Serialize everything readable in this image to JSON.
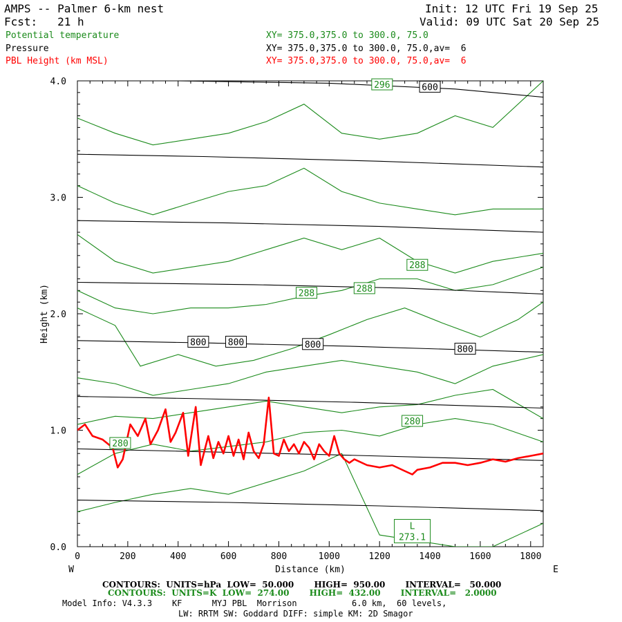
{
  "header": {
    "title": "AMPS -- Palmer 6-km nest",
    "init": "Init: 12 UTC Fri 19 Sep 25",
    "fcst": "Fcst:   21 h",
    "valid": "Valid: 09 UTC Sat 20 Sep 25",
    "field1_name": "Potential temperature",
    "field1_xy": "XY= 375.0,375.0 to 300.0, 75.0",
    "field2_name": "Pressure",
    "field2_xy": "XY= 375.0,375.0 to 300.0, 75.0,av=  6",
    "field3_name": "PBL Height (km MSL)",
    "field3_xy": "XY= 375.0,375.0 to 300.0, 75.0,av=  6"
  },
  "colors": {
    "theta": "#1a8a1a",
    "pressure": "#000000",
    "pbl": "#ff0000"
  },
  "footer": {
    "line1": "CONTOURS:  UNITS=hPa  LOW=  50.000       HIGH=  950.00       INTERVAL=   50.000",
    "line2": "CONTOURS:  UNITS=K  LOW=  274.00       HIGH=  432.00       INTERVAL=   2.0000",
    "line3": "Model Info: V4.3.3    KF      MYJ PBL  Morrison           6.0 km,  60 levels,",
    "line4": "LW: RRTM SW: Goddard DIFF: simple KM: 2D Smagor"
  },
  "chart_data": {
    "type": "line",
    "xlabel": "Distance (km)",
    "ylabel": "Height (km)",
    "xlim": [
      0,
      1850
    ],
    "ylim": [
      0,
      4.0
    ],
    "x_ticks": [
      0,
      200,
      400,
      600,
      800,
      1000,
      1200,
      1400,
      1600,
      1800
    ],
    "y_ticks": [
      0.0,
      1.0,
      2.0,
      3.0,
      4.0
    ],
    "west_label": "W",
    "east_label": "E",
    "pressure_contours": [
      {
        "x": [
          0,
          600,
          1200,
          1850
        ],
        "y": [
          0.4,
          0.38,
          0.35,
          0.31
        ]
      },
      {
        "x": [
          0,
          400,
          1000,
          1850
        ],
        "y": [
          0.84,
          0.82,
          0.79,
          0.74
        ]
      },
      {
        "x": [
          0,
          500,
          1100,
          1850
        ],
        "y": [
          1.29,
          1.27,
          1.24,
          1.19
        ]
      },
      {
        "x": [
          0,
          500,
          1100,
          1850
        ],
        "y": [
          1.77,
          1.75,
          1.72,
          1.67
        ]
      },
      {
        "x": [
          0,
          700,
          1300,
          1850
        ],
        "y": [
          2.27,
          2.25,
          2.22,
          2.17
        ]
      },
      {
        "x": [
          0,
          600,
          1200,
          1850
        ],
        "y": [
          2.8,
          2.78,
          2.75,
          2.7
        ]
      },
      {
        "x": [
          0,
          500,
          1200,
          1850
        ],
        "y": [
          3.37,
          3.35,
          3.31,
          3.26
        ]
      },
      {
        "x": [
          0,
          400,
          1000,
          1500,
          1850
        ],
        "y": [
          4.02,
          4.0,
          3.98,
          3.93,
          3.86
        ]
      }
    ],
    "pressure_labels": [
      {
        "text": "800",
        "x": 480,
        "y": 1.76
      },
      {
        "text": "800",
        "x": 630,
        "y": 1.76
      },
      {
        "text": "800",
        "x": 935,
        "y": 1.74
      },
      {
        "text": "800",
        "x": 1540,
        "y": 1.7
      },
      {
        "text": "600",
        "x": 1400,
        "y": 3.95
      }
    ],
    "theta_contours": [
      {
        "x": [
          0,
          150,
          300,
          450,
          600,
          750,
          900,
          1050,
          1200,
          1350,
          1500,
          1650,
          1850
        ],
        "y": [
          0.3,
          0.38,
          0.45,
          0.5,
          0.45,
          0.55,
          0.65,
          0.8,
          0.1,
          0.05,
          0.0,
          0.0,
          0.2
        ]
      },
      {
        "x": [
          0,
          150,
          300,
          450,
          600,
          750,
          900,
          1050,
          1200,
          1350,
          1500,
          1650,
          1850
        ],
        "y": [
          0.62,
          0.8,
          0.88,
          0.82,
          0.86,
          0.9,
          0.98,
          1.0,
          0.95,
          1.05,
          1.1,
          1.05,
          0.9
        ]
      },
      {
        "x": [
          0,
          150,
          300,
          450,
          600,
          750,
          900,
          1050,
          1200,
          1350,
          1500,
          1650,
          1850
        ],
        "y": [
          1.05,
          1.12,
          1.1,
          1.15,
          1.2,
          1.25,
          1.2,
          1.15,
          1.2,
          1.22,
          1.3,
          1.35,
          1.1
        ]
      },
      {
        "x": [
          0,
          150,
          300,
          450,
          600,
          750,
          900,
          1050,
          1200,
          1350,
          1500,
          1650,
          1850
        ],
        "y": [
          1.45,
          1.4,
          1.3,
          1.35,
          1.4,
          1.5,
          1.55,
          1.6,
          1.55,
          1.5,
          1.4,
          1.55,
          1.65
        ]
      },
      {
        "x": [
          0,
          150,
          250,
          400,
          550,
          700,
          850,
          1000,
          1150,
          1300,
          1450,
          1600,
          1750,
          1850
        ],
        "y": [
          2.05,
          1.9,
          1.55,
          1.65,
          1.55,
          1.6,
          1.7,
          1.82,
          1.95,
          2.05,
          1.92,
          1.8,
          1.95,
          2.1
        ]
      },
      {
        "x": [
          0,
          150,
          300,
          450,
          600,
          750,
          900,
          1050,
          1200,
          1350,
          1500,
          1650,
          1850
        ],
        "y": [
          2.2,
          2.05,
          2.0,
          2.05,
          2.05,
          2.08,
          2.15,
          2.2,
          2.3,
          2.3,
          2.2,
          2.25,
          2.4
        ]
      },
      {
        "x": [
          0,
          150,
          300,
          450,
          600,
          750,
          900,
          1050,
          1200,
          1350,
          1500,
          1650,
          1850
        ],
        "y": [
          2.68,
          2.45,
          2.35,
          2.4,
          2.45,
          2.55,
          2.65,
          2.55,
          2.65,
          2.45,
          2.35,
          2.45,
          2.52
        ]
      },
      {
        "x": [
          0,
          150,
          300,
          450,
          600,
          750,
          900,
          1050,
          1200,
          1350,
          1500,
          1650,
          1850
        ],
        "y": [
          3.1,
          2.95,
          2.85,
          2.95,
          3.05,
          3.1,
          3.25,
          3.05,
          2.95,
          2.9,
          2.85,
          2.9,
          2.9
        ]
      },
      {
        "x": [
          0,
          150,
          300,
          450,
          600,
          750,
          900,
          1050,
          1200,
          1350,
          1500,
          1650,
          1850
        ],
        "y": [
          3.68,
          3.55,
          3.45,
          3.5,
          3.55,
          3.65,
          3.8,
          3.55,
          3.5,
          3.55,
          3.7,
          3.6,
          4.0
        ]
      }
    ],
    "theta_labels": [
      {
        "text": "280",
        "x": 170,
        "y": 0.89
      },
      {
        "text": "280",
        "x": 1330,
        "y": 1.08
      },
      {
        "text": "288",
        "x": 910,
        "y": 2.18
      },
      {
        "text": "288",
        "x": 1140,
        "y": 2.22
      },
      {
        "text": "288",
        "x": 1350,
        "y": 2.42
      },
      {
        "text": "296",
        "x": 1210,
        "y": 3.97
      }
    ],
    "low_marker": {
      "text1": "L",
      "text2": "273.1",
      "x": 1330,
      "y": 0.08
    },
    "pbl_height": {
      "x": [
        0,
        30,
        60,
        100,
        140,
        160,
        180,
        210,
        240,
        270,
        290,
        320,
        350,
        370,
        390,
        420,
        440,
        470,
        490,
        520,
        540,
        560,
        580,
        600,
        620,
        640,
        660,
        680,
        700,
        720,
        740,
        760,
        780,
        800,
        820,
        840,
        860,
        880,
        900,
        920,
        940,
        960,
        980,
        1000,
        1020,
        1040,
        1060,
        1080,
        1100,
        1150,
        1200,
        1250,
        1300,
        1330,
        1350,
        1400,
        1450,
        1500,
        1550,
        1600,
        1650,
        1700,
        1750,
        1800,
        1850
      ],
      "y": [
        1.0,
        1.05,
        0.95,
        0.92,
        0.85,
        0.68,
        0.75,
        1.05,
        0.95,
        1.1,
        0.88,
        1.0,
        1.18,
        0.9,
        0.98,
        1.15,
        0.78,
        1.2,
        0.7,
        0.95,
        0.76,
        0.9,
        0.8,
        0.95,
        0.78,
        0.92,
        0.75,
        0.98,
        0.82,
        0.76,
        0.88,
        1.28,
        0.8,
        0.78,
        0.92,
        0.82,
        0.88,
        0.8,
        0.9,
        0.85,
        0.75,
        0.88,
        0.82,
        0.78,
        0.95,
        0.8,
        0.75,
        0.72,
        0.75,
        0.7,
        0.68,
        0.7,
        0.65,
        0.62,
        0.66,
        0.68,
        0.72,
        0.72,
        0.7,
        0.72,
        0.75,
        0.73,
        0.76,
        0.78,
        0.8
      ]
    }
  }
}
